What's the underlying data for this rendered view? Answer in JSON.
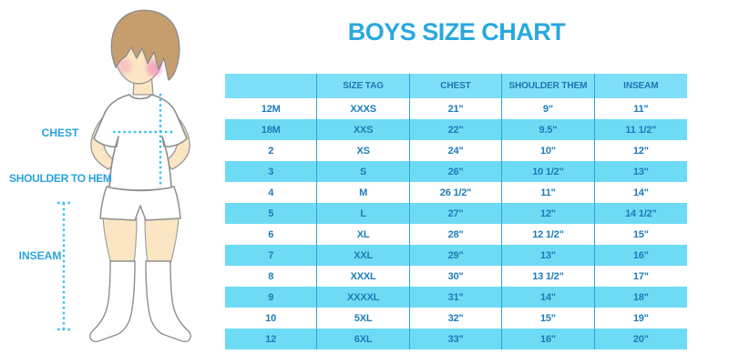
{
  "title": "BOYS SIZE CHART",
  "figure": {
    "chest_label": "CHEST",
    "shoulder_to_hem_label": "SHOULDER TO HEM",
    "inseam_label": "INSEAM"
  },
  "table": {
    "headers": [
      "",
      "SIZE TAG",
      "CHEST",
      "SHOULDER THEM",
      "INSEAM"
    ],
    "rows": [
      [
        "12M",
        "XXXS",
        "21\"",
        "9\"",
        "11\""
      ],
      [
        "18M",
        "XXS",
        "22\"",
        "9.5\"",
        "11 1/2\""
      ],
      [
        "2",
        "XS",
        "24\"",
        "10\"",
        "12\""
      ],
      [
        "3",
        "S",
        "26\"",
        "10 1/2\"",
        "13\""
      ],
      [
        "4",
        "M",
        "26 1/2\"",
        "11\"",
        "14\""
      ],
      [
        "5",
        "L",
        "27\"",
        "12\"",
        "14 1/2\""
      ],
      [
        "6",
        "XL",
        "28\"",
        "12 1/2\"",
        "15\""
      ],
      [
        "7",
        "XXL",
        "29\"",
        "13\"",
        "16\""
      ],
      [
        "8",
        "XXXL",
        "30\"",
        "13 1/2\"",
        "17\""
      ],
      [
        "9",
        "XXXXL",
        "31\"",
        "14\"",
        "18\""
      ],
      [
        "10",
        "5XL",
        "32\"",
        "15\"",
        "19\""
      ],
      [
        "12",
        "6XL",
        "33\"",
        "16\"",
        "20\""
      ]
    ]
  },
  "colors": {
    "title_blue": "#29A8DF",
    "label_blue": "#2BA3DC",
    "table_text_blue": "#1C7BB9",
    "header_row_bg": "#7EE0F8",
    "alt_row_bg": "#6EDBF5",
    "grid_line_blue": "#2AA7DC",
    "dotted_measure_cyan": "#35C1EE",
    "skin": "#FBE6C3",
    "hair_brown": "#C69E6E"
  }
}
